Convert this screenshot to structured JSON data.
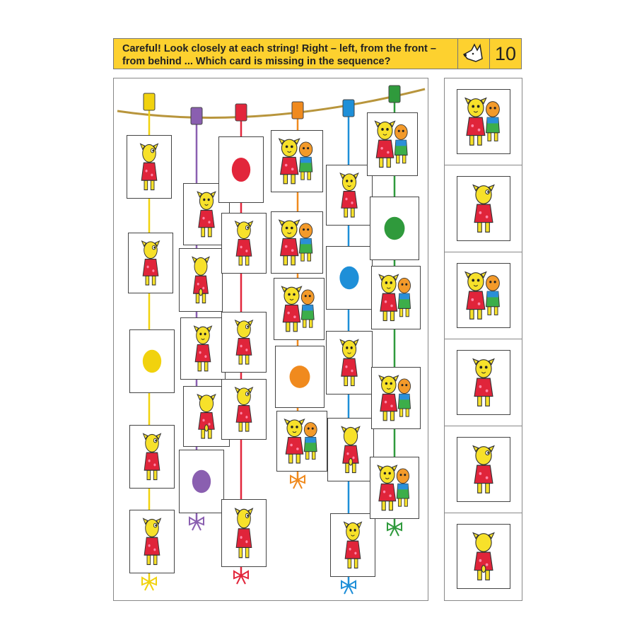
{
  "header": {
    "instruction": "Careful! Look closely at each string! Right – left, from the front – from behind ... Which card is missing in the sequence?",
    "icon": "dog-head-icon",
    "page_number": "10",
    "background": "#fdd12f"
  },
  "strings": [
    {
      "color": "#f1d20e",
      "cards": [
        "side",
        "side",
        "dot",
        "side",
        "side"
      ]
    },
    {
      "color": "#8a5fb0",
      "cards": [
        "front",
        "back",
        "front",
        "back",
        "dot"
      ]
    },
    {
      "color": "#e2263b",
      "cards": [
        "dot",
        "side",
        "side",
        "side",
        "side"
      ]
    },
    {
      "color": "#f08a1e",
      "cards": [
        "pair",
        "pair",
        "pair",
        "dot",
        "pair"
      ]
    },
    {
      "color": "#1e8fd8",
      "cards": [
        "front",
        "dot",
        "front",
        "back",
        "front"
      ]
    },
    {
      "color": "#2f9a3c",
      "cards": [
        "pair",
        "dot",
        "pair",
        "pair",
        "pair"
      ]
    }
  ],
  "answers": [
    "pair",
    "side",
    "pair",
    "front",
    "side",
    "back"
  ]
}
